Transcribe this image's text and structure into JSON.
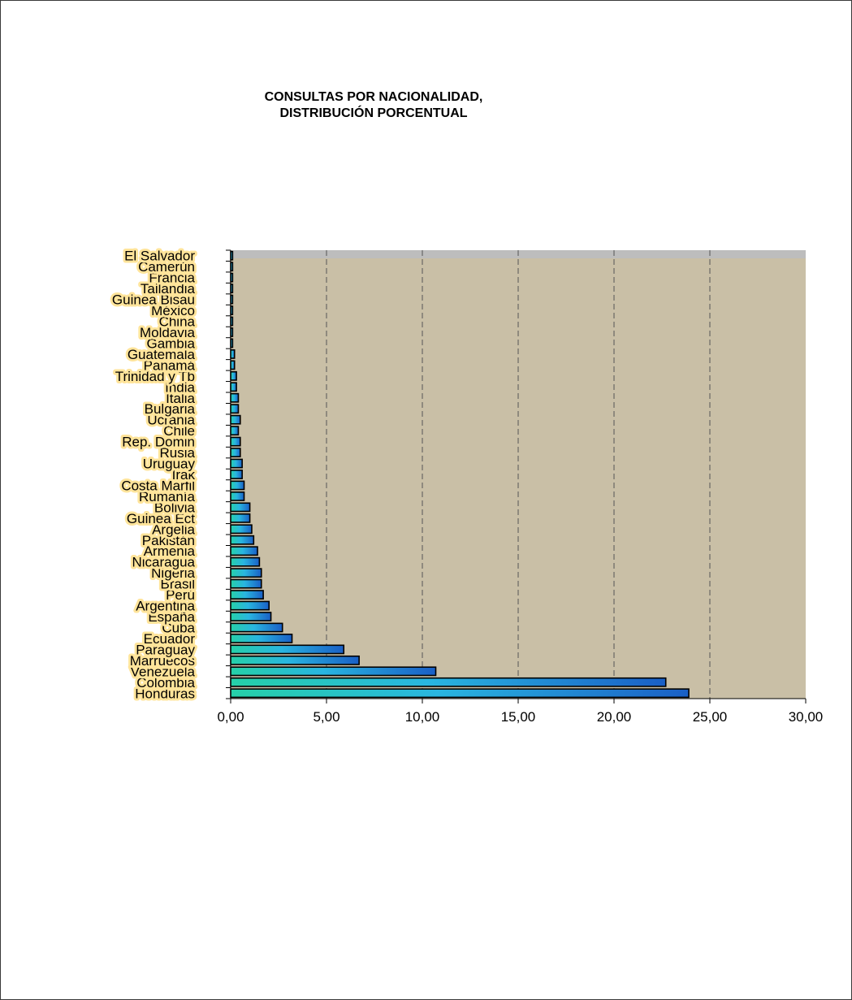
{
  "chart_data": {
    "type": "bar",
    "orientation": "horizontal",
    "title": "CONSULTAS POR NACIONALIDAD,\nDISTRIBUCIÓN PORCENTUAL",
    "xlabel": "",
    "ylabel": "",
    "xlim": [
      0,
      30
    ],
    "x_ticks": [
      "0,00",
      "5,00",
      "10,00",
      "15,00",
      "20,00",
      "25,00",
      "30,00"
    ],
    "grid": "vertical dashed",
    "legend": "none",
    "categories": [
      "Honduras",
      "Colombia",
      "Venezuela",
      "Marruecos",
      "Paraguay",
      "Ecuador",
      "Cuba",
      "España",
      "Argentina",
      "Perú",
      "Brasil",
      "Nigeria",
      "Nicaragua",
      "Armenia",
      "Pakistán",
      "Argelia",
      "Guinea Ect",
      "Bolivia",
      "Rumanía",
      "Costa Marfil",
      "Irak",
      "Uruguay",
      "Rusia",
      "Rep. Domin",
      "Chile",
      "Ucrania",
      "Bulgaria",
      "Italia",
      "India",
      "Trinidad y Tb",
      "Panamá",
      "Guatemala",
      "Gambia",
      "Moldavia",
      "China",
      "México",
      "Guinea Bisau",
      "Tailandia",
      "Francia",
      "Camerún",
      "El Salvador"
    ],
    "values": [
      23.9,
      22.7,
      10.7,
      6.7,
      5.9,
      3.2,
      2.7,
      2.1,
      2.0,
      1.7,
      1.6,
      1.6,
      1.5,
      1.4,
      1.2,
      1.1,
      1.0,
      1.0,
      0.7,
      0.7,
      0.6,
      0.6,
      0.5,
      0.5,
      0.4,
      0.5,
      0.4,
      0.4,
      0.3,
      0.3,
      0.2,
      0.2,
      0.1,
      0.1,
      0.1,
      0.1,
      0.1,
      0.1,
      0.1,
      0.1,
      0.1
    ],
    "colors": {
      "plot_background": "#c9bfa6",
      "plot_top_band": "#bdbdbd",
      "bar_start": "#26d0a8",
      "bar_mid": "#29b6e0",
      "bar_end": "#1a5fc6",
      "bar_outline": "#000000",
      "label_glow": "#ffe49a"
    }
  }
}
